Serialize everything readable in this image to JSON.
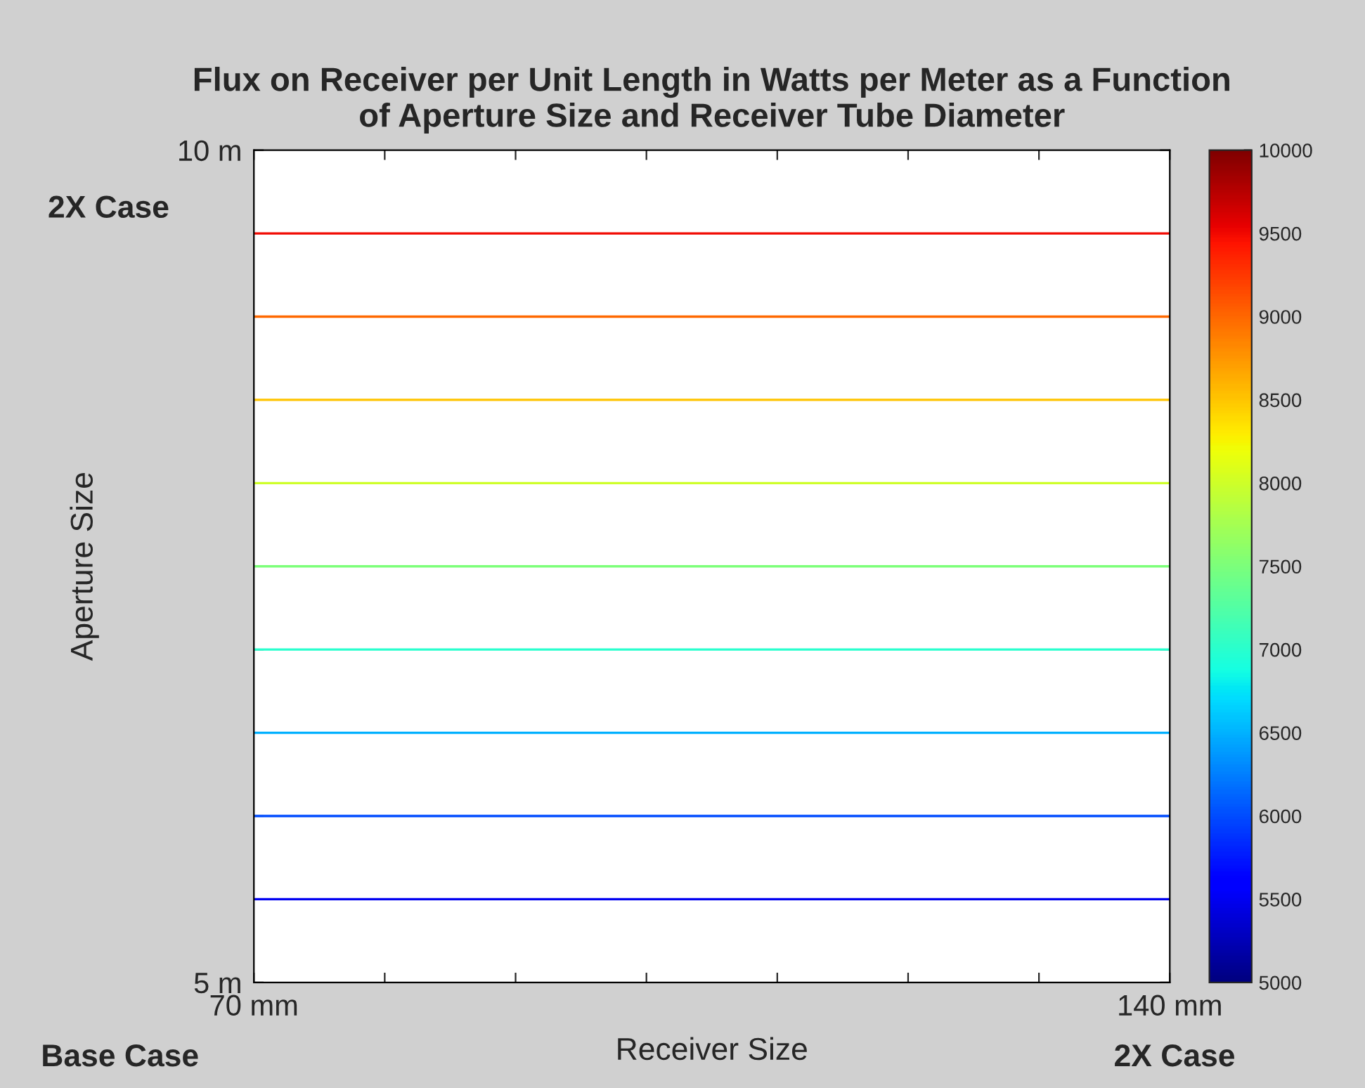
{
  "chart_data": {
    "type": "line",
    "title": "Flux on Receiver per Unit Length in Watts per Meter as a Function\nof Aperture Size and Receiver Tube Diameter",
    "xlabel": "Receiver Size",
    "ylabel": "Aperture Size",
    "x": [
      70,
      140
    ],
    "series": [
      {
        "color": "#0000f1",
        "values": [
          5.5,
          5.5
        ]
      },
      {
        "color": "#004cff",
        "values": [
          6.0,
          6.0
        ]
      },
      {
        "color": "#00b0ff",
        "values": [
          6.5,
          6.5
        ]
      },
      {
        "color": "#29ffce",
        "values": [
          7.0,
          7.0
        ]
      },
      {
        "color": "#7dff7a",
        "values": [
          7.5,
          7.5
        ]
      },
      {
        "color": "#ceff29",
        "values": [
          8.0,
          8.0
        ]
      },
      {
        "color": "#ffc400",
        "values": [
          8.5,
          8.5
        ]
      },
      {
        "color": "#ff6800",
        "values": [
          9.0,
          9.0
        ]
      },
      {
        "color": "#f10800",
        "values": [
          9.5,
          9.5
        ]
      }
    ],
    "xlim": [
      70,
      140
    ],
    "xticks": [
      {
        "value": 70,
        "label": "70 mm"
      },
      {
        "value": 80,
        "label": null
      },
      {
        "value": 90,
        "label": null
      },
      {
        "value": 100,
        "label": null
      },
      {
        "value": 110,
        "label": null
      },
      {
        "value": 120,
        "label": null
      },
      {
        "value": 130,
        "label": null
      },
      {
        "value": 140,
        "label": "140 mm"
      }
    ],
    "ylim": [
      5,
      10
    ],
    "yticks": [
      {
        "value": 5,
        "label": "5 m"
      },
      {
        "value": 6,
        "label": null
      },
      {
        "value": 7,
        "label": null
      },
      {
        "value": 8,
        "label": null
      },
      {
        "value": 9,
        "label": null
      },
      {
        "value": 10,
        "label": "10 m"
      }
    ],
    "clim": [
      5000,
      10000
    ],
    "cticks": [
      5000,
      5500,
      6000,
      6500,
      7000,
      7500,
      8000,
      8500,
      9000,
      9500,
      10000
    ],
    "annotations": [
      "2X Case",
      "Base Case",
      "2X Case"
    ],
    "grid": false,
    "legend": false,
    "marker": "none",
    "line_style": "solid"
  }
}
